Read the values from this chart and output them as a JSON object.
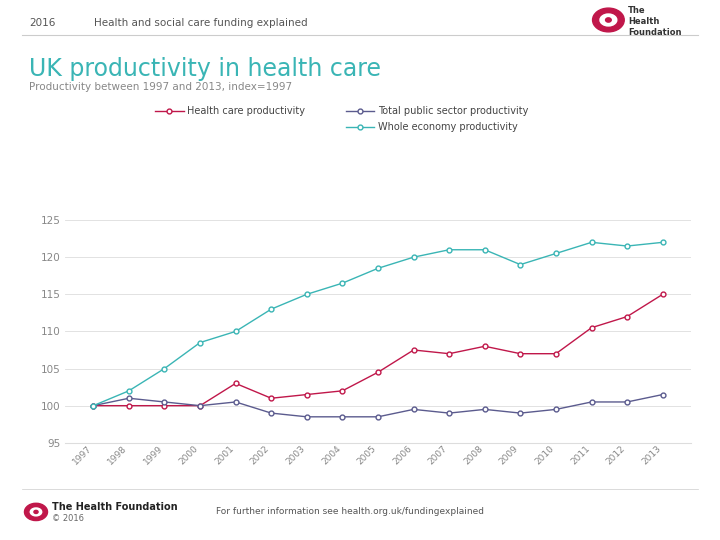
{
  "title": "UK productivity in health care",
  "subtitle": "Productivity between 1997 and 2013, index=1997",
  "header_year": "2016",
  "header_text": "Health and social care funding explained",
  "years": [
    1997,
    1998,
    1999,
    2000,
    2001,
    2002,
    2003,
    2004,
    2005,
    2006,
    2007,
    2008,
    2009,
    2010,
    2011,
    2012,
    2013
  ],
  "health_care": [
    100,
    100,
    100,
    100,
    103,
    101,
    101.5,
    102,
    104.5,
    107.5,
    107,
    108,
    107,
    107,
    110.5,
    112,
    115
  ],
  "total_public": [
    100,
    101,
    100.5,
    100,
    100.5,
    99,
    98.5,
    98.5,
    98.5,
    99.5,
    99,
    99.5,
    99,
    99.5,
    100.5,
    100.5,
    101.5
  ],
  "whole_economy": [
    100,
    102,
    105,
    108.5,
    110,
    113,
    115,
    116.5,
    118.5,
    120,
    121,
    121,
    119,
    120.5,
    122,
    121.5,
    122
  ],
  "health_color": "#c0174a",
  "total_public_color": "#5b5b8e",
  "whole_economy_color": "#3ab5b5",
  "title_color": "#3ab5b5",
  "subtitle_color": "#888888",
  "ylim_min": 95,
  "ylim_max": 127,
  "yticks": [
    95,
    100,
    105,
    110,
    115,
    120,
    125
  ],
  "background_color": "#ffffff",
  "legend_health": "Health care productivity",
  "legend_total": "Total public sector productivity",
  "legend_whole": "Whole economy productivity",
  "footer_org": "The Health Foundation",
  "footer_copy": "© 2016",
  "footer_link": "For further information see health.org.uk/fundingexplained",
  "logo_color": "#c0174a",
  "header_color": "#555555",
  "grid_color": "#dddddd",
  "tick_color": "#888888"
}
